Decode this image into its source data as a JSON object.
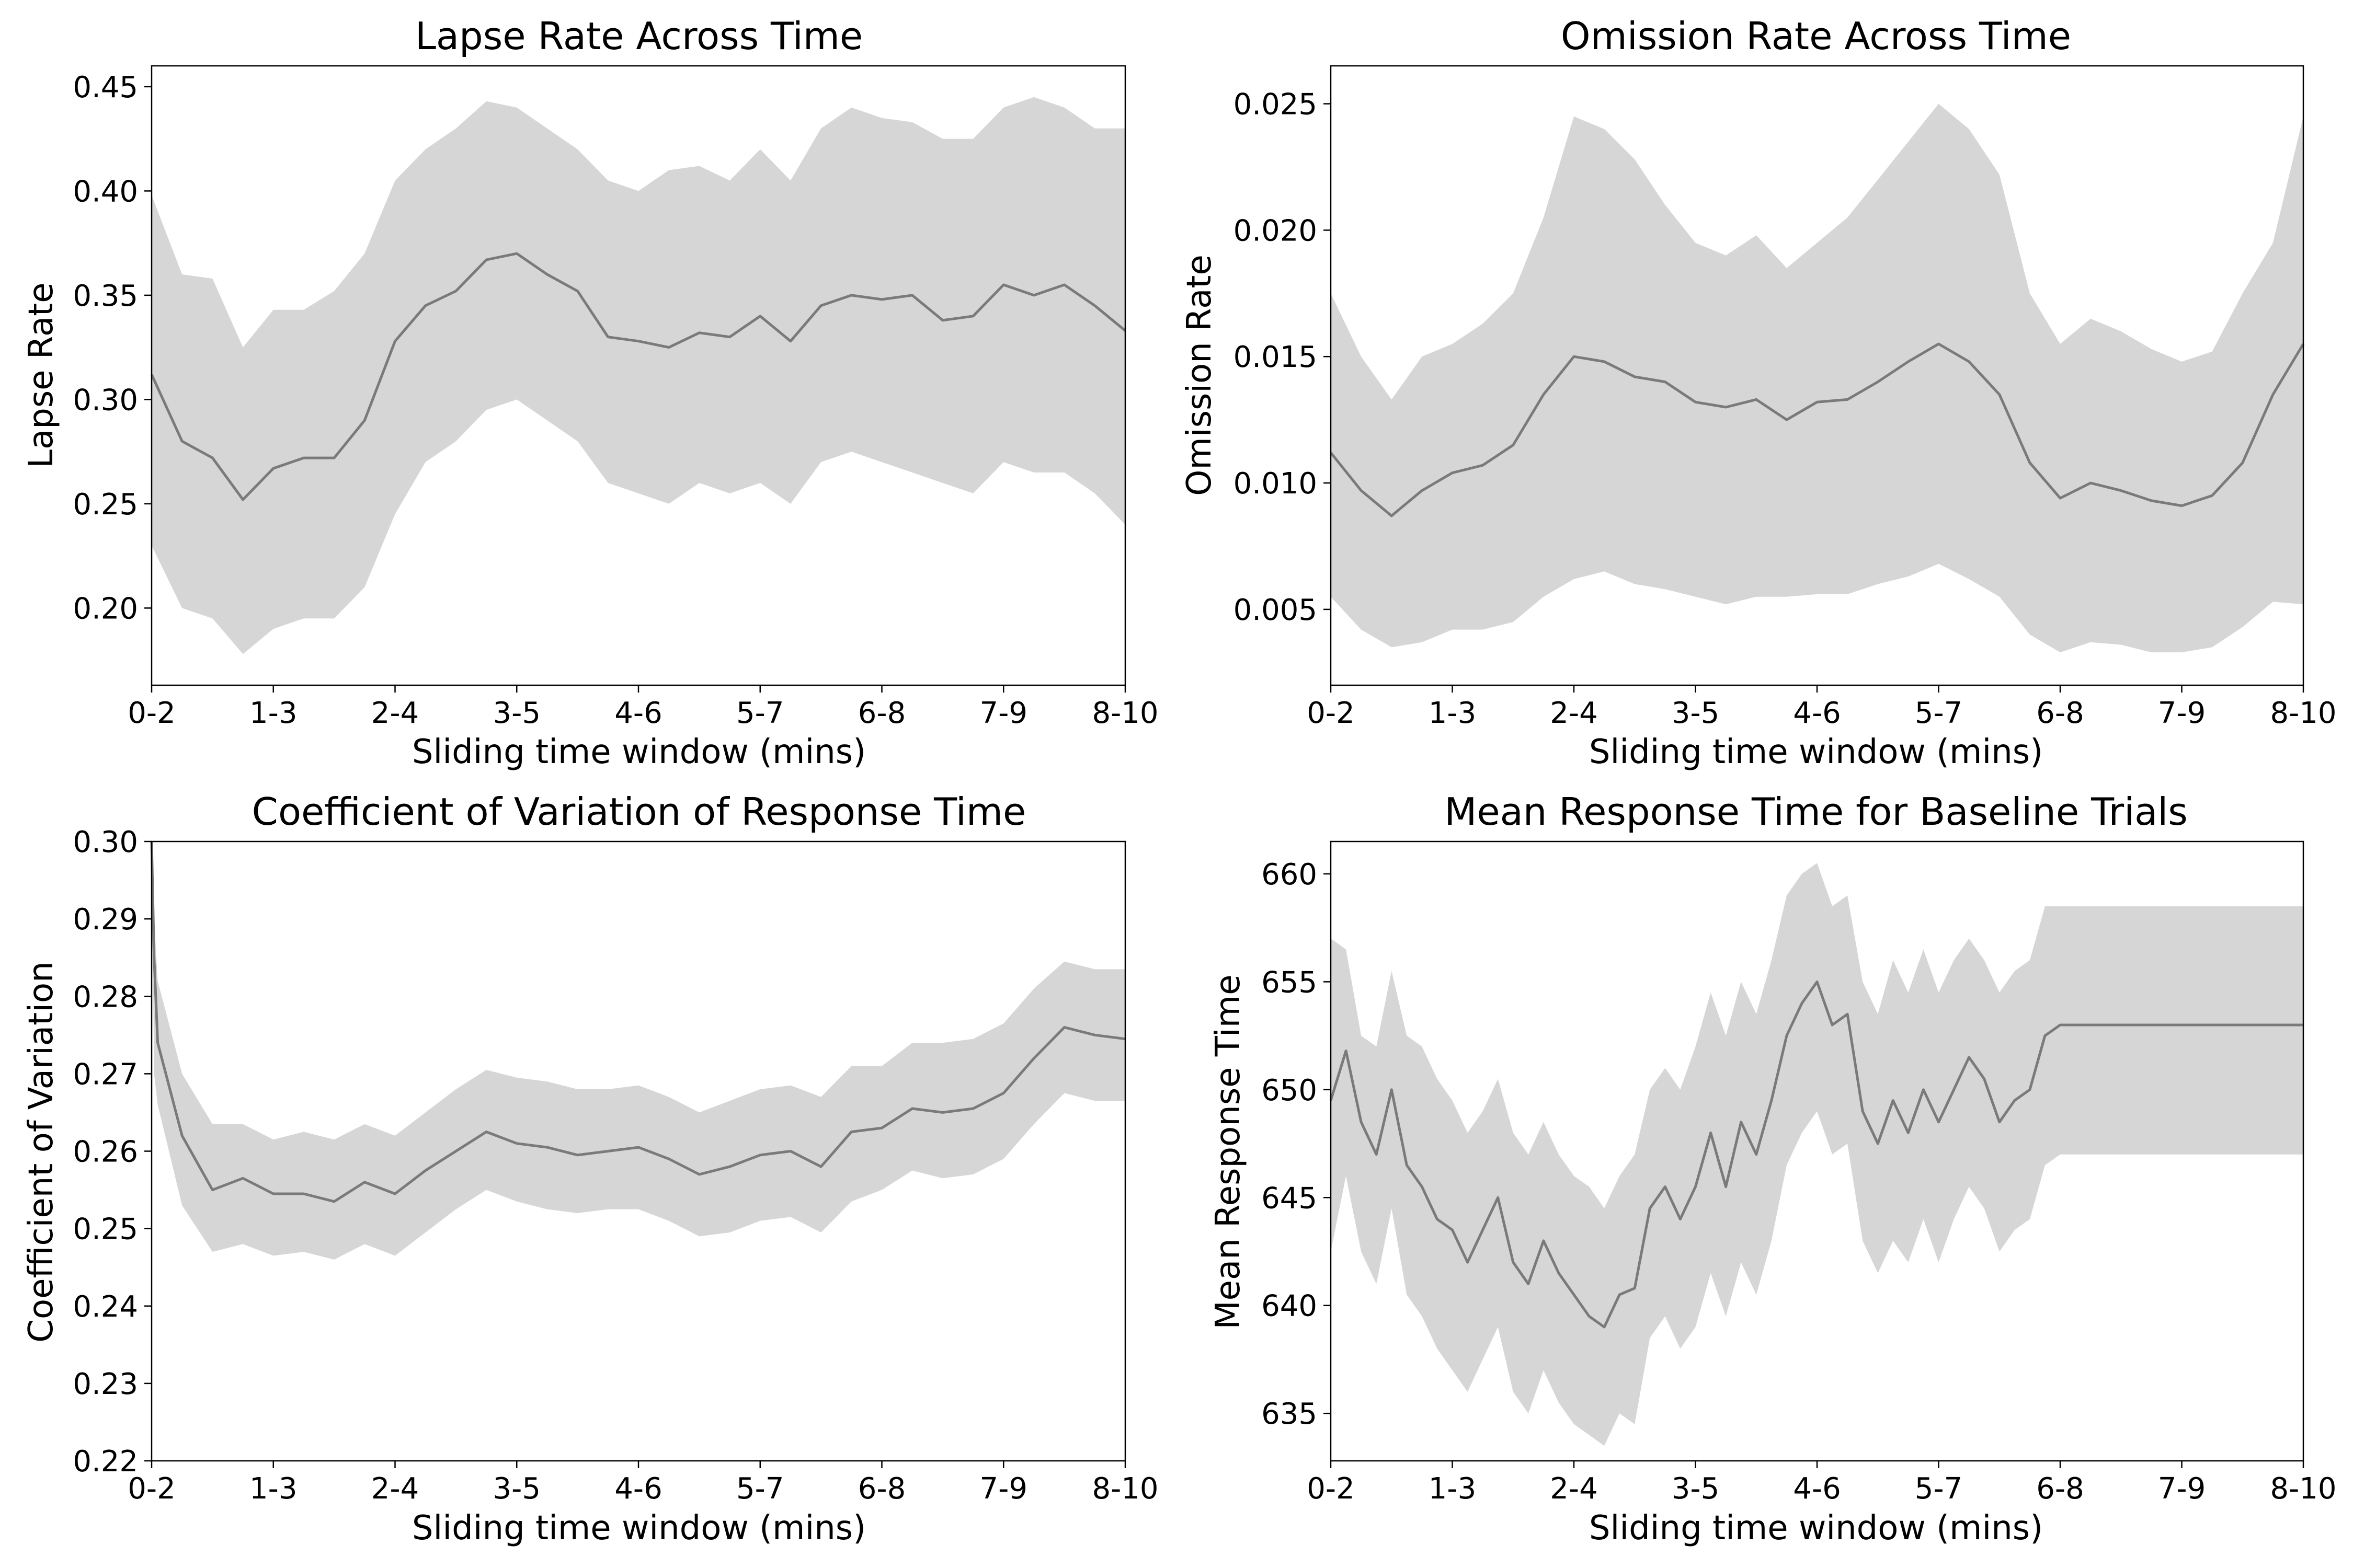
{
  "chart_data": [
    {
      "type": "area",
      "title": "Lapse Rate Across Time",
      "xlabel": "Sliding time window (mins)",
      "ylabel": "Lapse Rate",
      "x_tick_labels": [
        "0-2",
        "1-3",
        "2-4",
        "3-5",
        "4-6",
        "5-7",
        "6-8",
        "7-9",
        "8-10"
      ],
      "y_ticks": [
        0.2,
        0.25,
        0.3,
        0.35,
        0.4,
        0.45
      ],
      "y_tick_labels": [
        "0.20",
        "0.25",
        "0.30",
        "0.35",
        "0.40",
        "0.45"
      ],
      "ylim": [
        0.163,
        0.46
      ],
      "grid": false,
      "colors": {
        "line": "#7a7a7a",
        "band": "#d6d6d6"
      },
      "x": [
        0,
        0.25,
        0.5,
        0.75,
        1,
        1.25,
        1.5,
        1.75,
        2,
        2.25,
        2.5,
        2.75,
        3,
        3.25,
        3.5,
        3.75,
        4,
        4.25,
        4.5,
        4.75,
        5,
        5.25,
        5.5,
        5.75,
        6,
        6.25,
        6.5,
        6.75,
        7,
        7.25,
        7.5,
        7.75,
        8
      ],
      "series": [
        {
          "role": "mean",
          "values": [
            0.312,
            0.28,
            0.272,
            0.252,
            0.267,
            0.272,
            0.272,
            0.29,
            0.328,
            0.345,
            0.352,
            0.367,
            0.37,
            0.36,
            0.352,
            0.33,
            0.328,
            0.325,
            0.332,
            0.33,
            0.34,
            0.328,
            0.345,
            0.35,
            0.348,
            0.35,
            0.338,
            0.34,
            0.355,
            0.35,
            0.355,
            0.345,
            0.333
          ]
        },
        {
          "role": "upper",
          "values": [
            0.398,
            0.36,
            0.358,
            0.325,
            0.343,
            0.343,
            0.352,
            0.37,
            0.405,
            0.42,
            0.43,
            0.443,
            0.44,
            0.43,
            0.42,
            0.405,
            0.4,
            0.41,
            0.412,
            0.405,
            0.42,
            0.405,
            0.43,
            0.44,
            0.435,
            0.433,
            0.425,
            0.425,
            0.44,
            0.445,
            0.44,
            0.43,
            0.43
          ]
        },
        {
          "role": "lower",
          "values": [
            0.23,
            0.2,
            0.195,
            0.178,
            0.19,
            0.195,
            0.195,
            0.21,
            0.245,
            0.27,
            0.28,
            0.295,
            0.3,
            0.29,
            0.28,
            0.26,
            0.255,
            0.25,
            0.26,
            0.255,
            0.26,
            0.25,
            0.27,
            0.275,
            0.27,
            0.265,
            0.26,
            0.255,
            0.27,
            0.265,
            0.265,
            0.255,
            0.24
          ]
        }
      ]
    },
    {
      "type": "area",
      "title": "Omission Rate Across Time",
      "xlabel": "Sliding time window (mins)",
      "ylabel": "Omission Rate",
      "x_tick_labels": [
        "0-2",
        "1-3",
        "2-4",
        "3-5",
        "4-6",
        "5-7",
        "6-8",
        "7-9",
        "8-10"
      ],
      "y_ticks": [
        0.005,
        0.01,
        0.015,
        0.02,
        0.025
      ],
      "y_tick_labels": [
        "0.005",
        "0.010",
        "0.015",
        "0.020",
        "0.025"
      ],
      "ylim": [
        0.002,
        0.0265
      ],
      "grid": false,
      "colors": {
        "line": "#7a7a7a",
        "band": "#d6d6d6"
      },
      "x": [
        0,
        0.25,
        0.5,
        0.75,
        1,
        1.25,
        1.5,
        1.75,
        2,
        2.25,
        2.5,
        2.75,
        3,
        3.25,
        3.5,
        3.75,
        4,
        4.25,
        4.5,
        4.75,
        5,
        5.25,
        5.5,
        5.75,
        6,
        6.25,
        6.5,
        6.75,
        7,
        7.25,
        7.5,
        7.75,
        8
      ],
      "series": [
        {
          "role": "mean",
          "values": [
            0.0112,
            0.0097,
            0.0087,
            0.0097,
            0.0104,
            0.0107,
            0.0115,
            0.0135,
            0.015,
            0.0148,
            0.0142,
            0.014,
            0.0132,
            0.013,
            0.0133,
            0.0125,
            0.0132,
            0.0133,
            0.014,
            0.0148,
            0.0155,
            0.0148,
            0.0135,
            0.0108,
            0.0094,
            0.01,
            0.0097,
            0.0093,
            0.0091,
            0.0095,
            0.0108,
            0.0135,
            0.0155
          ]
        },
        {
          "role": "upper",
          "values": [
            0.0175,
            0.015,
            0.0133,
            0.015,
            0.0155,
            0.0163,
            0.0175,
            0.0205,
            0.0245,
            0.024,
            0.0228,
            0.021,
            0.0195,
            0.019,
            0.0198,
            0.0185,
            0.0195,
            0.0205,
            0.022,
            0.0235,
            0.025,
            0.024,
            0.0222,
            0.0175,
            0.0155,
            0.0165,
            0.016,
            0.0153,
            0.0148,
            0.0152,
            0.0175,
            0.0195,
            0.0245
          ]
        },
        {
          "role": "lower",
          "values": [
            0.0055,
            0.0042,
            0.0035,
            0.0037,
            0.0042,
            0.0042,
            0.0045,
            0.0055,
            0.0062,
            0.0065,
            0.006,
            0.0058,
            0.0055,
            0.0052,
            0.0055,
            0.0055,
            0.0056,
            0.0056,
            0.006,
            0.0063,
            0.0068,
            0.0062,
            0.0055,
            0.004,
            0.0033,
            0.0037,
            0.0036,
            0.0033,
            0.0033,
            0.0035,
            0.0043,
            0.0053,
            0.0052
          ]
        }
      ]
    },
    {
      "type": "area",
      "title": "Coefficient of Variation of Response Time",
      "xlabel": "Sliding time window (mins)",
      "ylabel": "Coefficient of Variation",
      "x_tick_labels": [
        "0-2",
        "1-3",
        "2-4",
        "3-5",
        "4-6",
        "5-7",
        "6-8",
        "7-9",
        "8-10"
      ],
      "y_ticks": [
        0.22,
        0.23,
        0.24,
        0.25,
        0.26,
        0.27,
        0.28,
        0.29,
        0.3
      ],
      "y_tick_labels": [
        "0.22",
        "0.23",
        "0.24",
        "0.25",
        "0.26",
        "0.27",
        "0.28",
        "0.29",
        "0.30"
      ],
      "ylim": [
        0.22,
        0.3
      ],
      "grid": false,
      "colors": {
        "line": "#7a7a7a",
        "band": "#d6d6d6"
      },
      "x": [
        0,
        0.02,
        0.05,
        0.25,
        0.5,
        0.75,
        1,
        1.25,
        1.5,
        1.75,
        2,
        2.25,
        2.5,
        2.75,
        3,
        3.25,
        3.5,
        3.75,
        4,
        4.25,
        4.5,
        4.75,
        5,
        5.25,
        5.5,
        5.75,
        6,
        6.25,
        6.5,
        6.75,
        7,
        7.25,
        7.5,
        7.75,
        8
      ],
      "series": [
        {
          "role": "mean",
          "values": [
            0.3,
            0.285,
            0.274,
            0.262,
            0.255,
            0.2565,
            0.2545,
            0.2545,
            0.2535,
            0.256,
            0.2545,
            0.2575,
            0.26,
            0.2625,
            0.261,
            0.2605,
            0.2595,
            0.26,
            0.2605,
            0.259,
            0.257,
            0.258,
            0.2595,
            0.26,
            0.258,
            0.2625,
            0.263,
            0.2655,
            0.265,
            0.2655,
            0.2675,
            0.272,
            0.276,
            0.275,
            0.2745
          ]
        },
        {
          "role": "upper",
          "values": [
            0.3,
            0.29,
            0.282,
            0.27,
            0.2635,
            0.2635,
            0.2615,
            0.2625,
            0.2615,
            0.2635,
            0.262,
            0.265,
            0.268,
            0.2705,
            0.2695,
            0.269,
            0.268,
            0.268,
            0.2685,
            0.267,
            0.265,
            0.2665,
            0.268,
            0.2685,
            0.267,
            0.271,
            0.271,
            0.274,
            0.274,
            0.2745,
            0.2765,
            0.281,
            0.2845,
            0.2835,
            0.2835
          ]
        },
        {
          "role": "lower",
          "values": [
            0.3,
            0.27,
            0.266,
            0.253,
            0.247,
            0.248,
            0.2465,
            0.247,
            0.246,
            0.248,
            0.2465,
            0.2495,
            0.2525,
            0.255,
            0.2535,
            0.2525,
            0.252,
            0.2525,
            0.2525,
            0.251,
            0.249,
            0.2495,
            0.251,
            0.2515,
            0.2495,
            0.2535,
            0.255,
            0.2575,
            0.2565,
            0.257,
            0.259,
            0.2635,
            0.2675,
            0.2665,
            0.2665
          ]
        }
      ]
    },
    {
      "type": "area",
      "title": "Mean Response Time for Baseline Trials",
      "xlabel": "Sliding time window (mins)",
      "ylabel": "Mean Response Time",
      "x_tick_labels": [
        "0-2",
        "1-3",
        "2-4",
        "3-5",
        "4-6",
        "5-7",
        "6-8",
        "7-9",
        "8-10"
      ],
      "y_ticks": [
        635,
        640,
        645,
        650,
        655,
        660
      ],
      "y_tick_labels": [
        "635",
        "640",
        "645",
        "650",
        "655",
        "660"
      ],
      "ylim": [
        632.8,
        661.5
      ],
      "grid": false,
      "colors": {
        "line": "#7a7a7a",
        "band": "#d6d6d6"
      },
      "x": [
        0,
        0.125,
        0.25,
        0.375,
        0.5,
        0.625,
        0.75,
        0.875,
        1,
        1.125,
        1.25,
        1.375,
        1.5,
        1.625,
        1.75,
        1.875,
        2,
        2.125,
        2.25,
        2.375,
        2.5,
        2.625,
        2.75,
        2.875,
        3,
        3.125,
        3.25,
        3.375,
        3.5,
        3.625,
        3.75,
        3.875,
        4,
        4.125,
        4.25,
        4.375,
        4.5,
        4.625,
        4.75,
        4.875,
        5,
        5.125,
        5.25,
        5.375,
        5.5,
        5.625,
        5.75,
        5.875,
        6,
        6.125,
        6.25,
        6.375,
        6.5,
        6.625,
        6.75,
        6.875,
        7,
        7.125,
        7.25,
        7.375,
        7.5,
        7.625,
        7.75,
        7.875,
        8
      ],
      "series": [
        {
          "role": "mean",
          "values": [
            649.5,
            651.8,
            648.5,
            647.0,
            650.0,
            646.5,
            645.5,
            644.0,
            643.5,
            642.0,
            643.5,
            645.0,
            642.0,
            641.0,
            643.0,
            641.5,
            640.5,
            639.5,
            639.0,
            640.5,
            640.8,
            644.5,
            645.5,
            644.0,
            645.5,
            648.0,
            645.5,
            648.5,
            647.0,
            649.5,
            652.5,
            654.0,
            655.0,
            653.0,
            653.5,
            649.0,
            647.5,
            649.5,
            648.0,
            650.0,
            648.5,
            650.0,
            651.5,
            650.5,
            648.5,
            649.5,
            650.0,
            652.5,
            653.0,
            653.0,
            653.0,
            653.0,
            653.0,
            653.0,
            653.0,
            653.0,
            653.0,
            653.0,
            653.0,
            653.0,
            653.0,
            653.0,
            653.0,
            653.0,
            653.0
          ]
        },
        {
          "role": "upper",
          "values": [
            657.0,
            656.5,
            652.5,
            652.0,
            655.5,
            652.5,
            652.0,
            650.5,
            649.5,
            648.0,
            649.0,
            650.5,
            648.0,
            647.0,
            648.5,
            647.0,
            646.0,
            645.5,
            644.5,
            646.0,
            647.0,
            650.0,
            651.0,
            650.0,
            652.0,
            654.5,
            652.5,
            655.0,
            653.5,
            656.0,
            659.0,
            660.0,
            660.5,
            658.5,
            659.0,
            655.0,
            653.5,
            656.0,
            654.5,
            656.5,
            654.5,
            656.0,
            657.0,
            656.0,
            654.5,
            655.5,
            656.0,
            658.5,
            658.5,
            658.5,
            658.5,
            658.5,
            658.5,
            658.5,
            658.5,
            658.5,
            658.5,
            658.5,
            658.5,
            658.5,
            658.5,
            658.5,
            658.5,
            658.5,
            658.5
          ]
        },
        {
          "role": "lower",
          "values": [
            642.5,
            646.0,
            642.5,
            641.0,
            644.5,
            640.5,
            639.5,
            638.0,
            637.0,
            636.0,
            637.5,
            639.0,
            636.0,
            635.0,
            637.0,
            635.5,
            634.5,
            634.0,
            633.5,
            635.0,
            634.5,
            638.5,
            639.5,
            638.0,
            639.0,
            641.5,
            639.5,
            642.0,
            640.5,
            643.0,
            646.5,
            648.0,
            649.0,
            647.0,
            647.5,
            643.0,
            641.5,
            643.0,
            642.0,
            644.0,
            642.0,
            644.0,
            645.5,
            644.5,
            642.5,
            643.5,
            644.0,
            646.5,
            647.0,
            647.0,
            647.0,
            647.0,
            647.0,
            647.0,
            647.0,
            647.0,
            647.0,
            647.0,
            647.0,
            647.0,
            647.0,
            647.0,
            647.0,
            647.0,
            647.0
          ]
        }
      ]
    }
  ]
}
